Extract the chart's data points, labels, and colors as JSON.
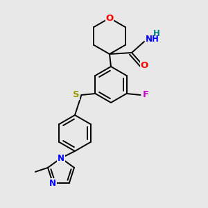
{
  "bg_color": "#e8e8e8",
  "atom_colors": {
    "O": "#ff0000",
    "N": "#0000ff",
    "F": "#cc00cc",
    "S": "#999900",
    "H": "#008080"
  },
  "bond_width": 1.4,
  "font_size": 8.5,
  "fig_size": [
    3.0,
    3.0
  ],
  "dpi": 100
}
